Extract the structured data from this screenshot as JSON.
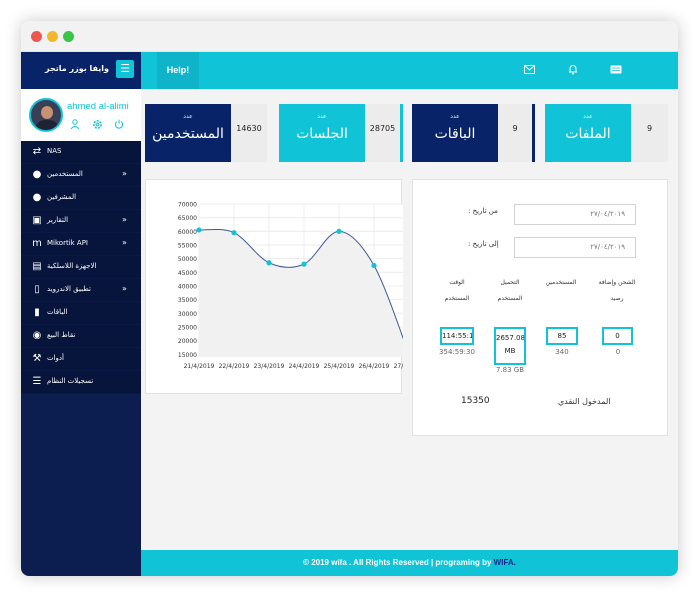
{
  "sidebar": {
    "brand_title": "وايفا بوزر ماتجر",
    "menu_toggle_icon": "hamburger-icon",
    "user": {
      "name": "ahmed al-alimi",
      "icons": [
        "user-icon",
        "gear-icon",
        "power-icon"
      ]
    },
    "items": [
      {
        "label": "NAS",
        "icon": "shuffle-icon",
        "has_arrow": false
      },
      {
        "label": "المستخدمين",
        "icon": "user-icon",
        "has_arrow": true
      },
      {
        "label": "المشرفين",
        "icon": "admin-icon",
        "has_arrow": false
      },
      {
        "label": "التقارير",
        "icon": "report-icon",
        "has_arrow": true
      },
      {
        "label": "Mikortik API",
        "icon": "mikrotik-icon",
        "has_arrow": true
      },
      {
        "label": "الاجهزة اللاسلكية",
        "icon": "rss-icon",
        "has_arrow": false
      },
      {
        "label": "تطبيق الاندرويد",
        "icon": "mobile-icon",
        "has_arrow": true
      },
      {
        "label": "الباقات",
        "icon": "tablet-icon",
        "has_arrow": false
      },
      {
        "label": "نقاط البيع",
        "icon": "map-marker-icon",
        "has_arrow": false
      },
      {
        "label": "أدوات",
        "icon": "wrench-icon",
        "has_arrow": false
      },
      {
        "label": "تسجيلات النظام",
        "icon": "list-icon",
        "has_arrow": false
      }
    ]
  },
  "header": {
    "help_label": "Help!",
    "icons": [
      "envelope-icon",
      "bell-icon",
      "keyboard-icon"
    ]
  },
  "stats": [
    {
      "small": "عدد",
      "label": "المستخدمين",
      "value": "14630",
      "color": "#082368"
    },
    {
      "small": "عدد",
      "label": "الجلسات",
      "value": "28705",
      "color": "#10c3d6"
    },
    {
      "small": "عدد",
      "label": "الباقات",
      "value": "9",
      "color": "#082368"
    },
    {
      "small": "عدد",
      "label": "الملفات",
      "value": "9",
      "color": "#10c3d6"
    }
  ],
  "chart_data": {
    "type": "line",
    "categories": [
      "21/4/2019",
      "22/4/2019",
      "23/4/2019",
      "24/4/2019",
      "25/4/2019",
      "26/4/2019",
      "27/4/2019"
    ],
    "values": [
      60500,
      59500,
      48500,
      48000,
      60000,
      47500,
      15000
    ],
    "yticks": [
      15000,
      20000,
      25000,
      30000,
      35000,
      40000,
      45000,
      50000,
      55000,
      60000,
      65000,
      70000
    ],
    "ylim": [
      14000,
      70000
    ],
    "grid": true,
    "line_color": "#3d5a99",
    "point_color": "#10c3d6",
    "fill_color": "#f1f1f1"
  },
  "report": {
    "from_label": ": من تاريخ",
    "from_value": "٢٧/٠٤/٢٠١٩",
    "to_label": ": إلى تاريخ",
    "to_value": "٢٧/٠٤/٢٠١٩",
    "columns": [
      {
        "header_line1": "الوقت",
        "header_line2": "المستخدم",
        "value": "114:55:1",
        "sub": "354:59:30"
      },
      {
        "header_line1": "التحميل",
        "header_line2": "المستخدم",
        "value": "2657.08 MB",
        "sub": "7.83 GB"
      },
      {
        "header_line1": "المستخدمين",
        "header_line2": "",
        "value": "85",
        "sub": "340"
      },
      {
        "header_line1": "الشحن وإضافة",
        "header_line2": "رصيد",
        "value": "0",
        "sub": "0"
      }
    ],
    "cash_label": "المدخول النقدي",
    "cash_value": "15350"
  },
  "footer": {
    "text": "© 2019 wifa . All Rights Reserved | programing by",
    "brand": "WIFA."
  }
}
